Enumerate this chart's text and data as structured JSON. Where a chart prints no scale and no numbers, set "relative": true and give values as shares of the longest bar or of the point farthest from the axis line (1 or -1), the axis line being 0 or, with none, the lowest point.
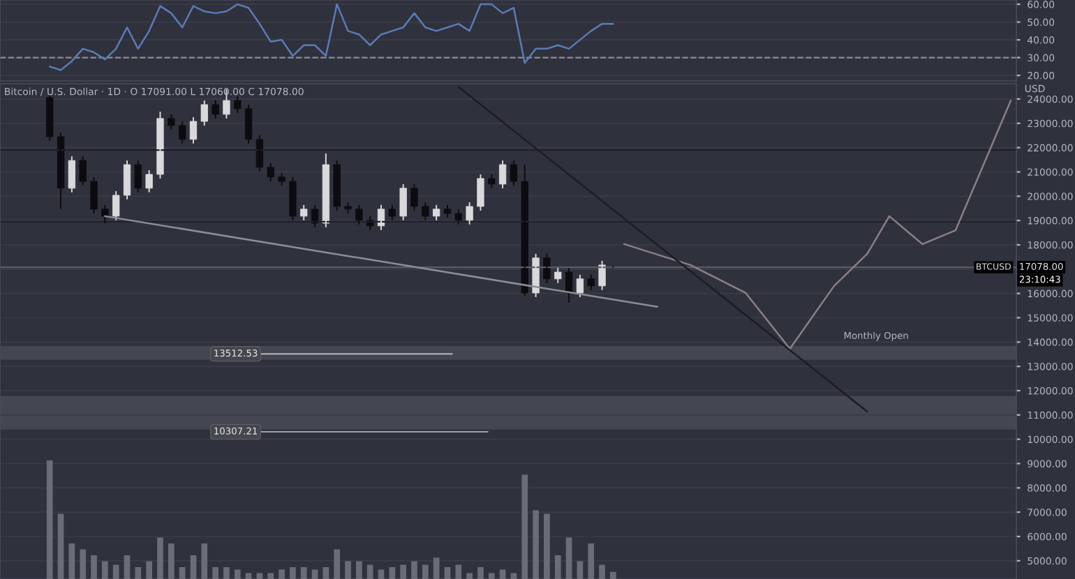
{
  "chart_data": [
    {
      "type": "line",
      "categories": [
        null,
        null,
        null,
        null,
        null,
        null,
        null,
        null,
        null,
        null,
        null,
        null,
        null,
        null,
        null,
        null,
        null,
        null,
        null,
        null,
        null,
        null,
        null,
        null,
        null,
        null,
        null,
        null,
        null,
        null,
        null,
        null,
        null,
        null,
        null,
        null,
        null,
        null,
        null,
        null,
        null,
        null,
        null,
        null,
        null,
        null,
        null,
        null,
        null,
        null,
        null,
        null,
        null,
        null,
        null,
        null,
        null,
        null,
        null,
        null,
        null,
        null,
        null,
        null,
        null,
        null,
        null,
        null,
        null,
        null,
        null,
        null,
        null,
        null,
        null,
        null,
        null,
        null,
        null,
        null,
        null,
        null,
        null,
        null,
        null,
        null,
        null,
        null,
        null,
        null,
        null,
        null
      ],
      "series": [
        {
          "color": "#5b7bb5",
          "values": [
            null,
            null,
            null,
            null,
            25,
            23,
            28,
            35,
            33,
            29,
            35,
            47,
            35,
            45,
            59,
            55,
            47,
            59,
            56,
            55,
            56,
            60,
            58,
            49,
            39,
            40,
            31,
            37,
            37,
            31,
            60,
            45,
            43,
            37,
            43,
            45,
            47,
            55,
            47,
            45,
            47,
            49,
            45,
            60,
            60,
            55,
            58,
            27,
            35,
            35,
            37,
            35,
            40,
            45,
            49,
            49,
            null,
            null,
            null,
            null,
            null,
            null,
            null,
            null,
            null,
            null,
            null,
            null,
            null,
            null,
            null,
            null,
            null,
            null,
            null,
            null,
            null,
            null,
            null,
            null,
            null,
            null,
            null,
            null,
            null,
            null,
            null,
            null,
            null,
            null,
            null,
            null
          ]
        }
      ],
      "ylim": [
        16.9,
        62.4
      ],
      "yticks": [
        {
          "value": 20,
          "label": "20.00"
        },
        {
          "value": 30,
          "label": "30.00"
        },
        {
          "value": 40,
          "label": "40.00"
        },
        {
          "value": 50,
          "label": "50.00"
        },
        {
          "value": 60,
          "label": "60.00"
        }
      ],
      "tick_labels": "y",
      "grid": "y",
      "ref_lines": [
        {
          "axis": "y",
          "value": 30,
          "color": "#8a8c96",
          "line_style": "dashed"
        }
      ]
    },
    {
      "type": "candlestick",
      "title": "Bitcoin / U.S. Dollar · 1D · O 17091.00 L 17060.00 C 17078.00",
      "ylabel": "USD",
      "categories": [
        null,
        null,
        null,
        null,
        null,
        null,
        null,
        null,
        null,
        null,
        null,
        null,
        null,
        null,
        null,
        null,
        null,
        null,
        null,
        null,
        null,
        null,
        null,
        null,
        null,
        null,
        null,
        null,
        null,
        null,
        null,
        null,
        null,
        null,
        null,
        null,
        null,
        null,
        null,
        null,
        null,
        null,
        null,
        null,
        null,
        null,
        null,
        null,
        null,
        null,
        null,
        null,
        null,
        null,
        null,
        null,
        null,
        null,
        null,
        null,
        null,
        null,
        null,
        null,
        null,
        null,
        null,
        null,
        null,
        null,
        null,
        null,
        null,
        null,
        null,
        null,
        null,
        null,
        null,
        null,
        null,
        null,
        null,
        null,
        null,
        null,
        null,
        null,
        null,
        null,
        null,
        null
      ],
      "ohlc": [
        null,
        null,
        null,
        null,
        [
          24060,
          24200,
          22280,
          22450
        ],
        [
          22450,
          22620,
          19470,
          20330
        ],
        [
          20330,
          21640,
          20160,
          21470
        ],
        [
          21470,
          21640,
          20440,
          20610
        ],
        [
          20610,
          20780,
          19300,
          19470
        ],
        [
          19470,
          19640,
          18890,
          19180
        ],
        [
          19180,
          20210,
          19010,
          20040
        ],
        [
          20040,
          21470,
          19870,
          21300
        ],
        [
          21300,
          21470,
          20160,
          20330
        ],
        [
          20330,
          21070,
          20160,
          20900
        ],
        [
          20900,
          23480,
          20730,
          23200
        ],
        [
          23200,
          23370,
          22740,
          22910
        ],
        [
          22910,
          23080,
          22170,
          22340
        ],
        [
          22340,
          23250,
          22170,
          23080
        ],
        [
          23080,
          23940,
          22910,
          23770
        ],
        [
          23770,
          23940,
          23200,
          23370
        ],
        [
          23370,
          24400,
          23200,
          23940
        ],
        [
          23940,
          24110,
          23430,
          23600
        ],
        [
          23600,
          23770,
          22170,
          22340
        ],
        [
          22340,
          22510,
          21020,
          21190
        ],
        [
          21190,
          21360,
          20620,
          20790
        ],
        [
          20790,
          20960,
          20440,
          20610
        ],
        [
          20610,
          20780,
          19010,
          19180
        ],
        [
          19180,
          19640,
          19010,
          19470
        ],
        [
          19470,
          19640,
          18720,
          18890
        ],
        [
          18890,
          21760,
          18720,
          21300
        ],
        [
          21300,
          21470,
          19410,
          19580
        ],
        [
          19580,
          19750,
          19300,
          19470
        ],
        [
          19470,
          19640,
          18840,
          19010
        ],
        [
          19010,
          19180,
          18610,
          18780
        ],
        [
          18780,
          19640,
          18610,
          19470
        ],
        [
          19470,
          19640,
          19010,
          19180
        ],
        [
          19180,
          20500,
          19010,
          20330
        ],
        [
          20330,
          20500,
          19410,
          19580
        ],
        [
          19580,
          19750,
          19010,
          19180
        ],
        [
          19180,
          19640,
          19010,
          19470
        ],
        [
          19470,
          19640,
          19120,
          19290
        ],
        [
          19290,
          19460,
          18840,
          19010
        ],
        [
          19010,
          19750,
          18840,
          19580
        ],
        [
          19580,
          20900,
          19410,
          20730
        ],
        [
          20730,
          20900,
          20330,
          20500
        ],
        [
          20500,
          21470,
          20330,
          21300
        ],
        [
          21300,
          21470,
          20440,
          20610
        ],
        [
          20610,
          21300,
          15910,
          16020
        ],
        [
          16020,
          17630,
          15850,
          17460
        ],
        [
          17460,
          17630,
          16430,
          16600
        ],
        [
          16600,
          17050,
          16430,
          16880
        ],
        [
          16880,
          17050,
          15620,
          16020
        ],
        [
          16020,
          16770,
          15850,
          16600
        ],
        [
          16600,
          16770,
          16140,
          16310
        ],
        [
          16310,
          17340,
          16140,
          17170
        ],
        [
          17091,
          17130,
          17060,
          17078
        ],
        null,
        null,
        null,
        null,
        null,
        null,
        null,
        null,
        null,
        null,
        null,
        null,
        null,
        null,
        null,
        null,
        null,
        null,
        null,
        null,
        null,
        null,
        null,
        null,
        null,
        null,
        null,
        null,
        null,
        null,
        null,
        null,
        null,
        null,
        null,
        null
      ],
      "series": [
        {
          "type": "line",
          "color": "#8a7f86",
          "values": [
            null,
            null,
            null,
            null,
            null,
            null,
            null,
            null,
            null,
            null,
            null,
            null,
            null,
            null,
            null,
            null,
            null,
            null,
            null,
            null,
            null,
            null,
            null,
            null,
            null,
            null,
            null,
            null,
            null,
            null,
            null,
            null,
            null,
            null,
            null,
            null,
            null,
            null,
            null,
            null,
            null,
            null,
            null,
            null,
            null,
            null,
            null,
            null,
            null,
            null,
            null,
            null,
            null,
            null,
            null,
            null,
            18030,
            null,
            null,
            null,
            null,
            null,
            17170,
            null,
            null,
            null,
            null,
            16020,
            null,
            null,
            null,
            13720,
            null,
            null,
            null,
            16310,
            null,
            null,
            17630,
            null,
            19180,
            null,
            null,
            18030,
            null,
            null,
            18600,
            null,
            null,
            null,
            null,
            23940
          ]
        },
        {
          "type": "line",
          "color": "#1c1d24",
          "values": [
            null,
            null,
            null,
            null,
            null,
            null,
            null,
            null,
            null,
            null,
            null,
            null,
            null,
            null,
            null,
            null,
            null,
            null,
            null,
            null,
            null,
            null,
            null,
            null,
            null,
            null,
            null,
            null,
            null,
            null,
            null,
            null,
            null,
            null,
            null,
            null,
            null,
            null,
            null,
            null,
            null,
            24500,
            null,
            null,
            null,
            null,
            null,
            null,
            null,
            null,
            null,
            null,
            null,
            null,
            null,
            null,
            null,
            null,
            null,
            null,
            null,
            null,
            null,
            null,
            null,
            null,
            null,
            null,
            null,
            null,
            null,
            null,
            null,
            null,
            null,
            null,
            null,
            null,
            11140,
            null,
            null,
            null,
            null,
            null,
            null,
            null,
            null,
            null,
            null,
            null,
            null,
            null
          ]
        },
        {
          "type": "line",
          "color": "#8c8e96",
          "values": [
            null,
            null,
            null,
            null,
            null,
            null,
            null,
            null,
            null,
            19180,
            null,
            null,
            null,
            null,
            null,
            null,
            null,
            null,
            null,
            null,
            null,
            null,
            null,
            null,
            null,
            null,
            null,
            null,
            null,
            null,
            null,
            null,
            null,
            null,
            null,
            null,
            null,
            null,
            null,
            null,
            null,
            null,
            null,
            null,
            null,
            null,
            null,
            null,
            null,
            null,
            null,
            null,
            null,
            null,
            null,
            null,
            null,
            null,
            null,
            15450,
            null,
            null,
            null,
            null,
            null,
            null,
            null,
            null,
            null,
            null,
            null,
            null,
            null,
            null,
            null,
            null,
            null,
            null,
            null,
            null,
            null,
            null,
            null,
            null,
            null,
            null,
            null,
            null,
            null,
            null,
            null,
            null
          ]
        }
      ],
      "ylim": [
        4250,
        24630
      ],
      "yticks": [
        {
          "value": 5000,
          "label": "5000.00"
        },
        {
          "value": 6000,
          "label": "6000.00"
        },
        {
          "value": 7000,
          "label": "7000.00"
        },
        {
          "value": 8000,
          "label": "8000.00"
        },
        {
          "value": 9000,
          "label": "9000.00"
        },
        {
          "value": 10000,
          "label": "10000.00"
        },
        {
          "value": 11000,
          "label": "11000.00"
        },
        {
          "value": 12000,
          "label": "12000.00"
        },
        {
          "value": 13000,
          "label": "13000.00"
        },
        {
          "value": 14000,
          "label": "14000.00"
        },
        {
          "value": 15000,
          "label": "15000.00"
        },
        {
          "value": 16000,
          "label": "16000.00"
        },
        {
          "value": 17000,
          "label": null
        },
        {
          "value": 18000,
          "label": "18000.00"
        },
        {
          "value": 19000,
          "label": "19000.00"
        },
        {
          "value": 20000,
          "label": "20000.00"
        },
        {
          "value": 21000,
          "label": "21000.00"
        },
        {
          "value": 22000,
          "label": "22000.00"
        },
        {
          "value": 23000,
          "label": "23000.00"
        },
        {
          "value": 24000,
          "label": "24000.00"
        }
      ],
      "tick_labels": "y",
      "grid": "y",
      "ref_lines": [
        {
          "axis": "y",
          "value": 21900,
          "color": "#1f2029"
        },
        {
          "axis": "y",
          "value": 18950,
          "color": "#1f2029"
        },
        {
          "axis": "y",
          "value": 17078,
          "label": "BTCUSD",
          "color": "#5a5c66"
        }
      ],
      "bands": [
        {
          "axis": "y",
          "from": 13270,
          "to": 13840,
          "color": "#4a4c56"
        },
        {
          "axis": "y",
          "from": 10400,
          "to": 11780,
          "color": "#4a4c56"
        }
      ],
      "annotations": [
        {
          "text": "13512.53",
          "y": 13512.53
        },
        {
          "text": "10307.21",
          "y": 10307.21
        },
        "Monthly Open",
        "17078.00",
        "23:10:43"
      ]
    },
    {
      "type": "bar",
      "relative": true,
      "tick_labels": false,
      "categories": [
        null,
        null,
        null,
        null,
        null,
        null,
        null,
        null,
        null,
        null,
        null,
        null,
        null,
        null,
        null,
        null,
        null,
        null,
        null,
        null,
        null,
        null,
        null,
        null,
        null,
        null,
        null,
        null,
        null,
        null,
        null,
        null,
        null,
        null,
        null,
        null,
        null,
        null,
        null,
        null,
        null,
        null,
        null,
        null,
        null,
        null,
        null,
        null,
        null,
        null,
        null,
        null,
        null,
        null,
        null,
        null,
        null,
        null,
        null,
        null,
        null,
        null,
        null,
        null,
        null,
        null,
        null,
        null,
        null,
        null,
        null,
        null,
        null,
        null,
        null,
        null,
        null,
        null,
        null,
        null,
        null,
        null,
        null,
        null,
        null,
        null,
        null,
        null,
        null,
        null,
        null,
        null
      ],
      "series": [
        {
          "color": "#6a6c78",
          "values": [
            null,
            null,
            null,
            null,
            1.0,
            0.55,
            0.3,
            0.25,
            0.2,
            0.15,
            0.12,
            0.2,
            0.1,
            0.15,
            0.35,
            0.3,
            0.1,
            0.2,
            0.3,
            0.1,
            0.1,
            0.08,
            0.05,
            0.05,
            0.05,
            0.08,
            0.1,
            0.1,
            0.08,
            0.1,
            0.25,
            0.15,
            0.15,
            0.12,
            0.08,
            0.1,
            0.12,
            0.15,
            0.12,
            0.18,
            0.1,
            0.12,
            0.05,
            0.1,
            0.05,
            0.08,
            0.05,
            0.88,
            0.58,
            0.55,
            0.2,
            0.35,
            0.15,
            0.3,
            0.12,
            0.06,
            null,
            null,
            null,
            null,
            null,
            null,
            null,
            null,
            null,
            null,
            null,
            null,
            null,
            null,
            null,
            null,
            null,
            null,
            null,
            null,
            null,
            null,
            null,
            null,
            null,
            null,
            null,
            null,
            null,
            null,
            null,
            null,
            null,
            null,
            null,
            null
          ]
        }
      ]
    }
  ]
}
